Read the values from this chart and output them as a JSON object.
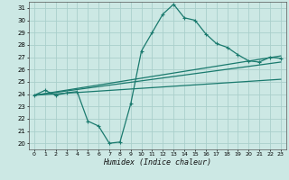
{
  "xlabel": "Humidex (Indice chaleur)",
  "bg_color": "#cce8e4",
  "grid_color": "#aacfcb",
  "line_color": "#1a7a6e",
  "xlim": [
    -0.5,
    23.5
  ],
  "ylim": [
    19.5,
    31.5
  ],
  "yticks": [
    20,
    21,
    22,
    23,
    24,
    25,
    26,
    27,
    28,
    29,
    30,
    31
  ],
  "xticks": [
    0,
    1,
    2,
    3,
    4,
    5,
    6,
    7,
    8,
    9,
    10,
    11,
    12,
    13,
    14,
    15,
    16,
    17,
    18,
    19,
    20,
    21,
    22,
    23
  ],
  "series1_x": [
    0,
    1,
    2,
    3,
    4,
    5,
    6,
    7,
    8,
    9,
    10,
    11,
    12,
    13,
    14,
    15,
    16,
    17,
    18,
    19,
    20,
    21,
    22,
    23
  ],
  "series1_y": [
    23.9,
    24.3,
    23.9,
    24.1,
    24.2,
    21.8,
    21.4,
    20.0,
    20.1,
    23.2,
    27.5,
    29.0,
    30.5,
    31.3,
    30.2,
    30.0,
    28.9,
    28.1,
    27.8,
    27.2,
    26.7,
    26.6,
    27.0,
    26.9
  ],
  "line2_x0": 0,
  "line2_y0": 23.9,
  "line2_x1": 23,
  "line2_y1": 25.2,
  "line3_x0": 0,
  "line3_y0": 23.9,
  "line3_x1": 23,
  "line3_y1": 26.6,
  "line4_x0": 0,
  "line4_y0": 23.9,
  "line4_x1": 23,
  "line4_y1": 27.1
}
